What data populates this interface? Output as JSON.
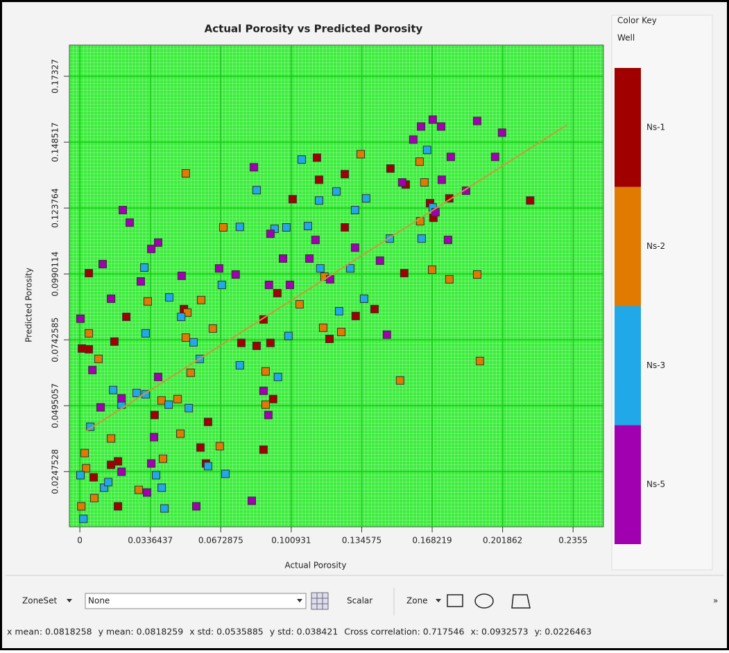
{
  "chart_data": {
    "type": "scatter",
    "title": "Actual Porosity vs Predicted Porosity",
    "x_label": "Actual Porosity",
    "y_label": "Predicted Porosity",
    "xlim": [
      -0.005,
      0.25
    ],
    "ylim": [
      0.004,
      0.185
    ],
    "xticks": [
      0,
      0.0336437,
      0.0672875,
      0.100931,
      0.134575,
      0.168219,
      0.201862,
      0.2355
    ],
    "yticks": [
      0.0247528,
      0.0495057,
      0.0742585,
      0.0990114,
      0.123764,
      0.148517,
      0.17327
    ],
    "grid": true,
    "legend": {
      "title": "Color Key",
      "subtitle": "Well",
      "position": "right"
    },
    "trend_line": {
      "x": [
        0.003,
        0.2325
      ],
      "y": [
        0.04,
        0.155
      ],
      "color": "#c89a3a"
    },
    "series": [
      {
        "name": "Ns-1",
        "color": "#a00000",
        "x": [
          0.215,
          0.1556,
          0.1483,
          0.1142,
          0.1132,
          0.1265,
          0.1016,
          0.1764,
          0.1672,
          0.1549,
          0.0943,
          0.0877,
          0.091,
          0.0844,
          0.0771,
          0.0612,
          0.0576,
          0.0602,
          0.0182,
          0.0149,
          0.0066,
          0.0182,
          0.0222,
          0.0165,
          0.0043,
          0.0043,
          0.001,
          0.0357,
          0.0497,
          0.0923,
          0.0877,
          0.1192,
          0.1407,
          0.1317,
          0.1265,
          0.1688
        ],
        "values": [
          0.1266,
          0.1326,
          0.1386,
          0.1344,
          0.1427,
          0.1365,
          0.1271,
          0.1274,
          0.1256,
          0.0993,
          0.0918,
          0.0819,
          0.0731,
          0.072,
          0.0731,
          0.0434,
          0.0338,
          0.0278,
          0.0286,
          0.0273,
          0.0226,
          0.0117,
          0.0829,
          0.0736,
          0.0993,
          0.0707,
          0.071,
          0.046,
          0.0858,
          0.052,
          0.033,
          0.0746,
          0.0858,
          0.0832,
          0.1165,
          0.1201
        ]
      },
      {
        "name": "Ns-2",
        "color": "#e07a00",
        "x": [
          0.0506,
          0.0685,
          0.1341,
          0.1622,
          0.1645,
          0.1625,
          0.1682,
          0.1764,
          0.1897,
          0.191,
          0.1529,
          0.1168,
          0.1162,
          0.1248,
          0.1049,
          0.0513,
          0.0579,
          0.0506,
          0.0635,
          0.0324,
          0.0887,
          0.0887,
          0.0467,
          0.048,
          0.0529,
          0.0668,
          0.0397,
          0.0149,
          0.0023,
          0.003,
          0.0069,
          0.0007,
          0.0043,
          0.0089,
          0.0281,
          0.039
        ],
        "values": [
          0.1368,
          0.1165,
          0.144,
          0.1412,
          0.1334,
          0.1188,
          0.1006,
          0.097,
          0.0988,
          0.0663,
          0.059,
          0.098,
          0.0788,
          0.0772,
          0.0876,
          0.0845,
          0.0892,
          0.0751,
          0.0785,
          0.0887,
          0.0624,
          0.0499,
          0.052,
          0.039,
          0.0619,
          0.0343,
          0.0296,
          0.0372,
          0.0317,
          0.026,
          0.0148,
          0.0117,
          0.0767,
          0.0671,
          0.0179,
          0.0515
        ]
      },
      {
        "name": "Ns-3",
        "color": "#20a8e8",
        "x": [
          0.1059,
          0.1658,
          0.1685,
          0.1632,
          0.148,
          0.1367,
          0.1314,
          0.1225,
          0.1142,
          0.093,
          0.0986,
          0.0764,
          0.0844,
          0.1089,
          0.1291,
          0.1148,
          0.1238,
          0.1357,
          0.0996,
          0.0946,
          0.0764,
          0.0678,
          0.0427,
          0.0308,
          0.0484,
          0.0543,
          0.0314,
          0.0573,
          0.0314,
          0.0271,
          0.0199,
          0.0159,
          0.0424,
          0.005,
          0.052,
          0.0391,
          0.0404,
          0.0364,
          0.0612,
          0.0695,
          0.0116,
          0.0136,
          0.0003,
          0.0017
        ],
        "values": [
          0.142,
          0.1456,
          0.124,
          0.1123,
          0.1123,
          0.1274,
          0.123,
          0.13,
          0.1266,
          0.116,
          0.1165,
          0.1167,
          0.1305,
          0.117,
          0.1011,
          0.1011,
          0.085,
          0.0897,
          0.0757,
          0.0603,
          0.0647,
          0.0949,
          0.0902,
          0.1014,
          0.0829,
          0.0733,
          0.0767,
          0.0671,
          0.0538,
          0.0543,
          0.0499,
          0.0554,
          0.0499,
          0.0416,
          0.0486,
          0.0187,
          0.0109,
          0.0234,
          0.0268,
          0.0239,
          0.0187,
          0.0208,
          0.0234,
          0.007
        ]
      },
      {
        "name": "Ns-5",
        "color": "#a000b0",
        "x": [
          0.1629,
          0.1685,
          0.1725,
          0.1592,
          0.1897,
          0.2016,
          0.1983,
          0.1771,
          0.1844,
          0.1728,
          0.1539,
          0.0831,
          0.0205,
          0.0238,
          0.0374,
          0.0341,
          0.0291,
          0.0149,
          0.0109,
          0.0003,
          0.006,
          0.0099,
          0.0199,
          0.0374,
          0.0354,
          0.0341,
          0.0321,
          0.0199,
          0.0486,
          0.0665,
          0.0744,
          0.0903,
          0.091,
          0.097,
          0.1003,
          0.1125,
          0.1195,
          0.1096,
          0.1314,
          0.1433,
          0.1466,
          0.0877,
          0.09,
          0.0556,
          0.0821,
          0.1758,
          0.1698
        ],
        "values": [
          0.1544,
          0.157,
          0.1544,
          0.1495,
          0.1565,
          0.1521,
          0.143,
          0.143,
          0.1303,
          0.1344,
          0.1334,
          0.1391,
          0.123,
          0.1183,
          0.1108,
          0.1084,
          0.0962,
          0.0897,
          0.1027,
          0.0822,
          0.0629,
          0.0489,
          0.0523,
          0.0603,
          0.0377,
          0.0278,
          0.0169,
          0.0247,
          0.0983,
          0.1011,
          0.0988,
          0.0949,
          0.1141,
          0.1048,
          0.0949,
          0.1118,
          0.097,
          0.1048,
          0.1089,
          0.104,
          0.0762,
          0.0551,
          0.046,
          0.0117,
          0.0138,
          0.1118,
          0.1222
        ]
      }
    ]
  },
  "toolbar": {
    "zoneset_label": "ZoneSet",
    "zoneset_value": "None",
    "scalar": "Scalar",
    "zone": "Zone",
    "more": "»"
  },
  "status": [
    "x mean: 0.0818258",
    "y mean: 0.0818259",
    "x std: 0.0535885",
    "y std: 0.038421",
    "Cross correlation: 0.717546",
    "x: 0.0932573",
    "y: 0.0226463"
  ]
}
